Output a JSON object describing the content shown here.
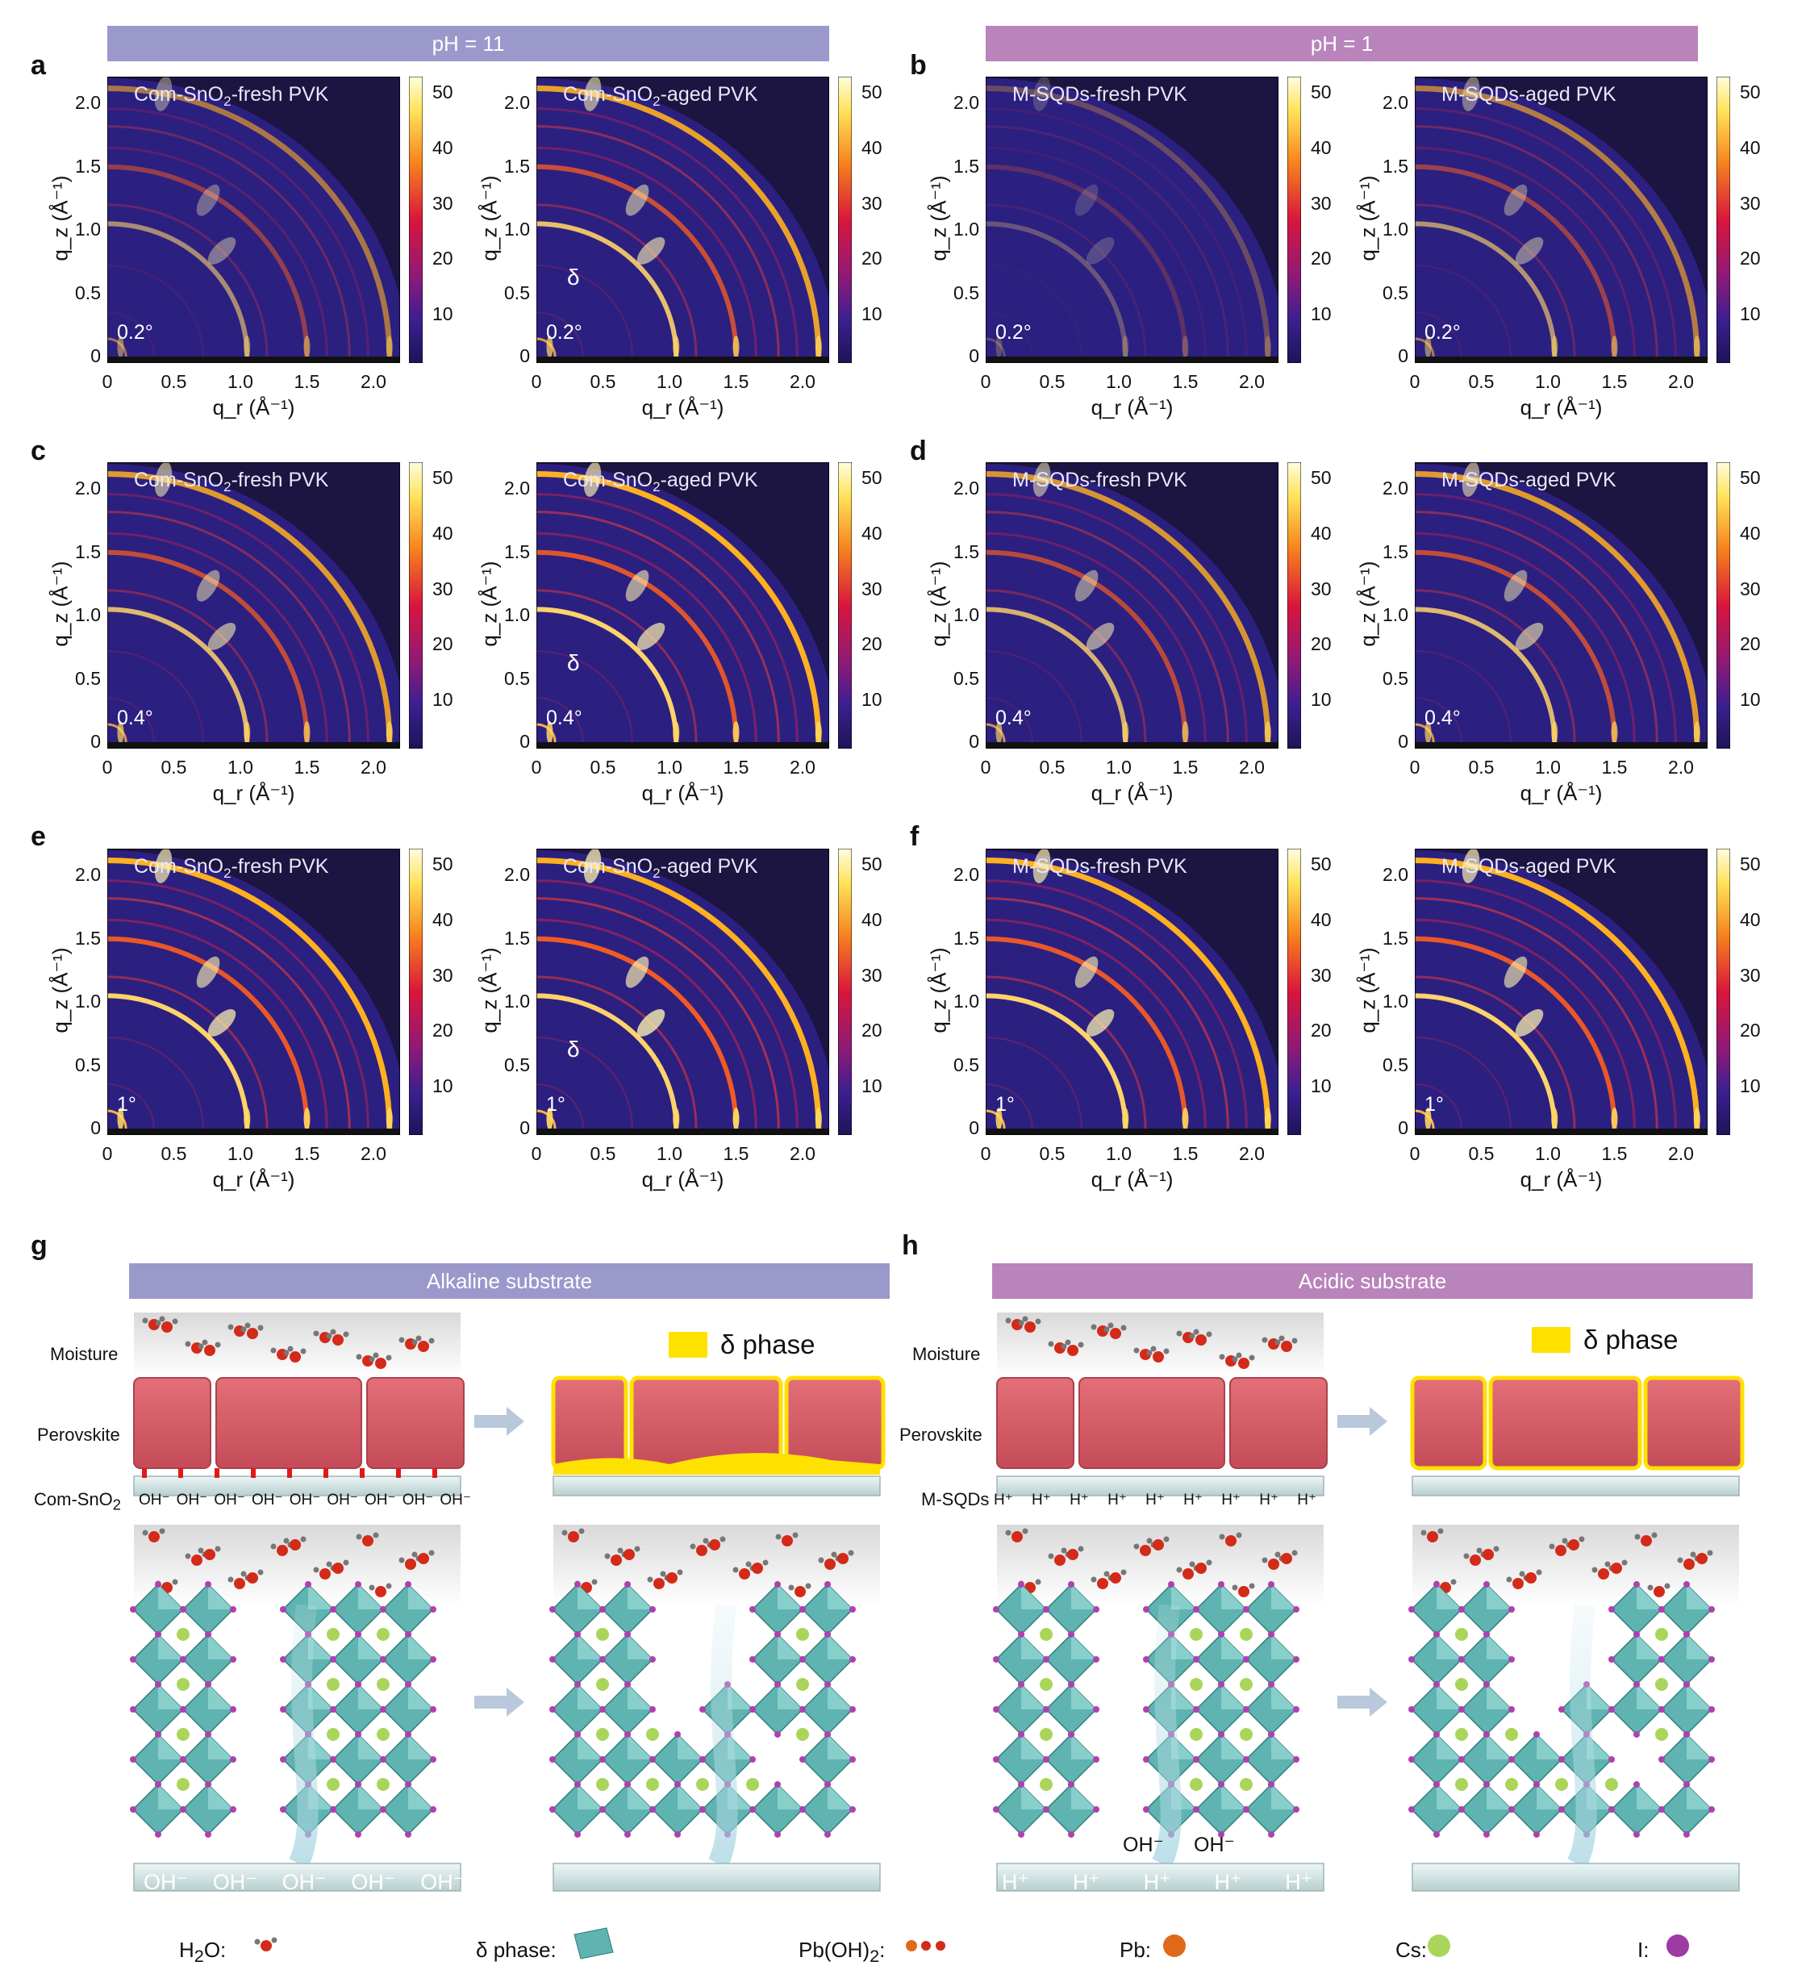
{
  "banners": {
    "top_left": "pH = 11",
    "top_right": "pH = 1",
    "g": "Alkaline substrate",
    "h": "Acidic substrate"
  },
  "colors": {
    "alkaline_banner": "#9b98cb",
    "acidic_banner": "#b983bb",
    "map_background": "#2a1e7a",
    "map_dark": "#1b1540",
    "perovskite": "#d9606a",
    "delta_phase": "#ffe100",
    "substrate": "#c9dcdc",
    "octahedron": "#5fb3b0"
  },
  "panels": [
    {
      "letter": "a",
      "maps": [
        {
          "title_pre": "Com-SnO",
          "title_sub": "2",
          "title_post": "-fresh PVK",
          "angle": "0.2°",
          "delta": ""
        },
        {
          "title_pre": "Com-SnO",
          "title_sub": "2",
          "title_post": "-aged PVK",
          "angle": "0.2°",
          "delta": "δ"
        }
      ]
    },
    {
      "letter": "b",
      "maps": [
        {
          "title_pre": "M-SQDs-fresh PVK",
          "title_sub": "",
          "title_post": "",
          "angle": "0.2°",
          "delta": ""
        },
        {
          "title_pre": "M-SQDs-aged PVK",
          "title_sub": "",
          "title_post": "",
          "angle": "0.2°",
          "delta": ""
        }
      ]
    },
    {
      "letter": "c",
      "maps": [
        {
          "title_pre": "Com-SnO",
          "title_sub": "2",
          "title_post": "-fresh PVK",
          "angle": "0.4°",
          "delta": ""
        },
        {
          "title_pre": "Com-SnO",
          "title_sub": "2",
          "title_post": "-aged PVK",
          "angle": "0.4°",
          "delta": "δ"
        }
      ]
    },
    {
      "letter": "d",
      "maps": [
        {
          "title_pre": "M-SQDs-fresh PVK",
          "title_sub": "",
          "title_post": "",
          "angle": "0.4°",
          "delta": ""
        },
        {
          "title_pre": "M-SQDs-aged PVK",
          "title_sub": "",
          "title_post": "",
          "angle": "0.4°",
          "delta": ""
        }
      ]
    },
    {
      "letter": "e",
      "maps": [
        {
          "title_pre": "Com-SnO",
          "title_sub": "2",
          "title_post": "-fresh PVK",
          "angle": "1°",
          "delta": ""
        },
        {
          "title_pre": "Com-SnO",
          "title_sub": "2",
          "title_post": "-aged PVK",
          "angle": "1°",
          "delta": "δ"
        }
      ]
    },
    {
      "letter": "f",
      "maps": [
        {
          "title_pre": "M-SQDs-fresh PVK",
          "title_sub": "",
          "title_post": "",
          "angle": "1°",
          "delta": ""
        },
        {
          "title_pre": "M-SQDs-aged PVK",
          "title_sub": "",
          "title_post": "",
          "angle": "1°",
          "delta": ""
        }
      ]
    }
  ],
  "axes": {
    "x_ticks": [
      "0",
      "0.5",
      "1.0",
      "1.5",
      "2.0"
    ],
    "y_ticks": [
      "2.0",
      "1.5",
      "1.0",
      "0.5",
      "0"
    ],
    "colorbar_ticks": [
      "50",
      "40",
      "30",
      "20",
      "10"
    ],
    "x_label": "q_r (Å⁻¹)",
    "y_label": "q_z (Å⁻¹)"
  },
  "schematic": {
    "g_letter": "g",
    "h_letter": "h",
    "moisture": "Moisture",
    "perovskite": "Perovskite",
    "com_sno2_pre": "Com-SnO",
    "com_sno2_sub": "2",
    "m_sqds": "M-SQDs",
    "delta_legend": "δ phase",
    "oh_surface": "OH⁻",
    "h_surface": "H⁺",
    "oh_bottom": [
      "OH⁻",
      "OH⁻",
      "OH⁻",
      "OH⁻",
      "OH⁻"
    ],
    "h_bottom": [
      "H⁺",
      "H⁺",
      "H⁺",
      "H⁺",
      "H⁺"
    ],
    "oh_h_label": "OH⁻"
  },
  "legend": {
    "h2o_pre": "H",
    "h2o_sub": "2",
    "h2o_post": "O:",
    "delta": "δ phase:",
    "pboh_pre": "Pb(OH)",
    "pboh_sub": "2",
    "pboh_post": ":",
    "pb": "Pb:",
    "cs": "Cs:",
    "i": "I:"
  }
}
